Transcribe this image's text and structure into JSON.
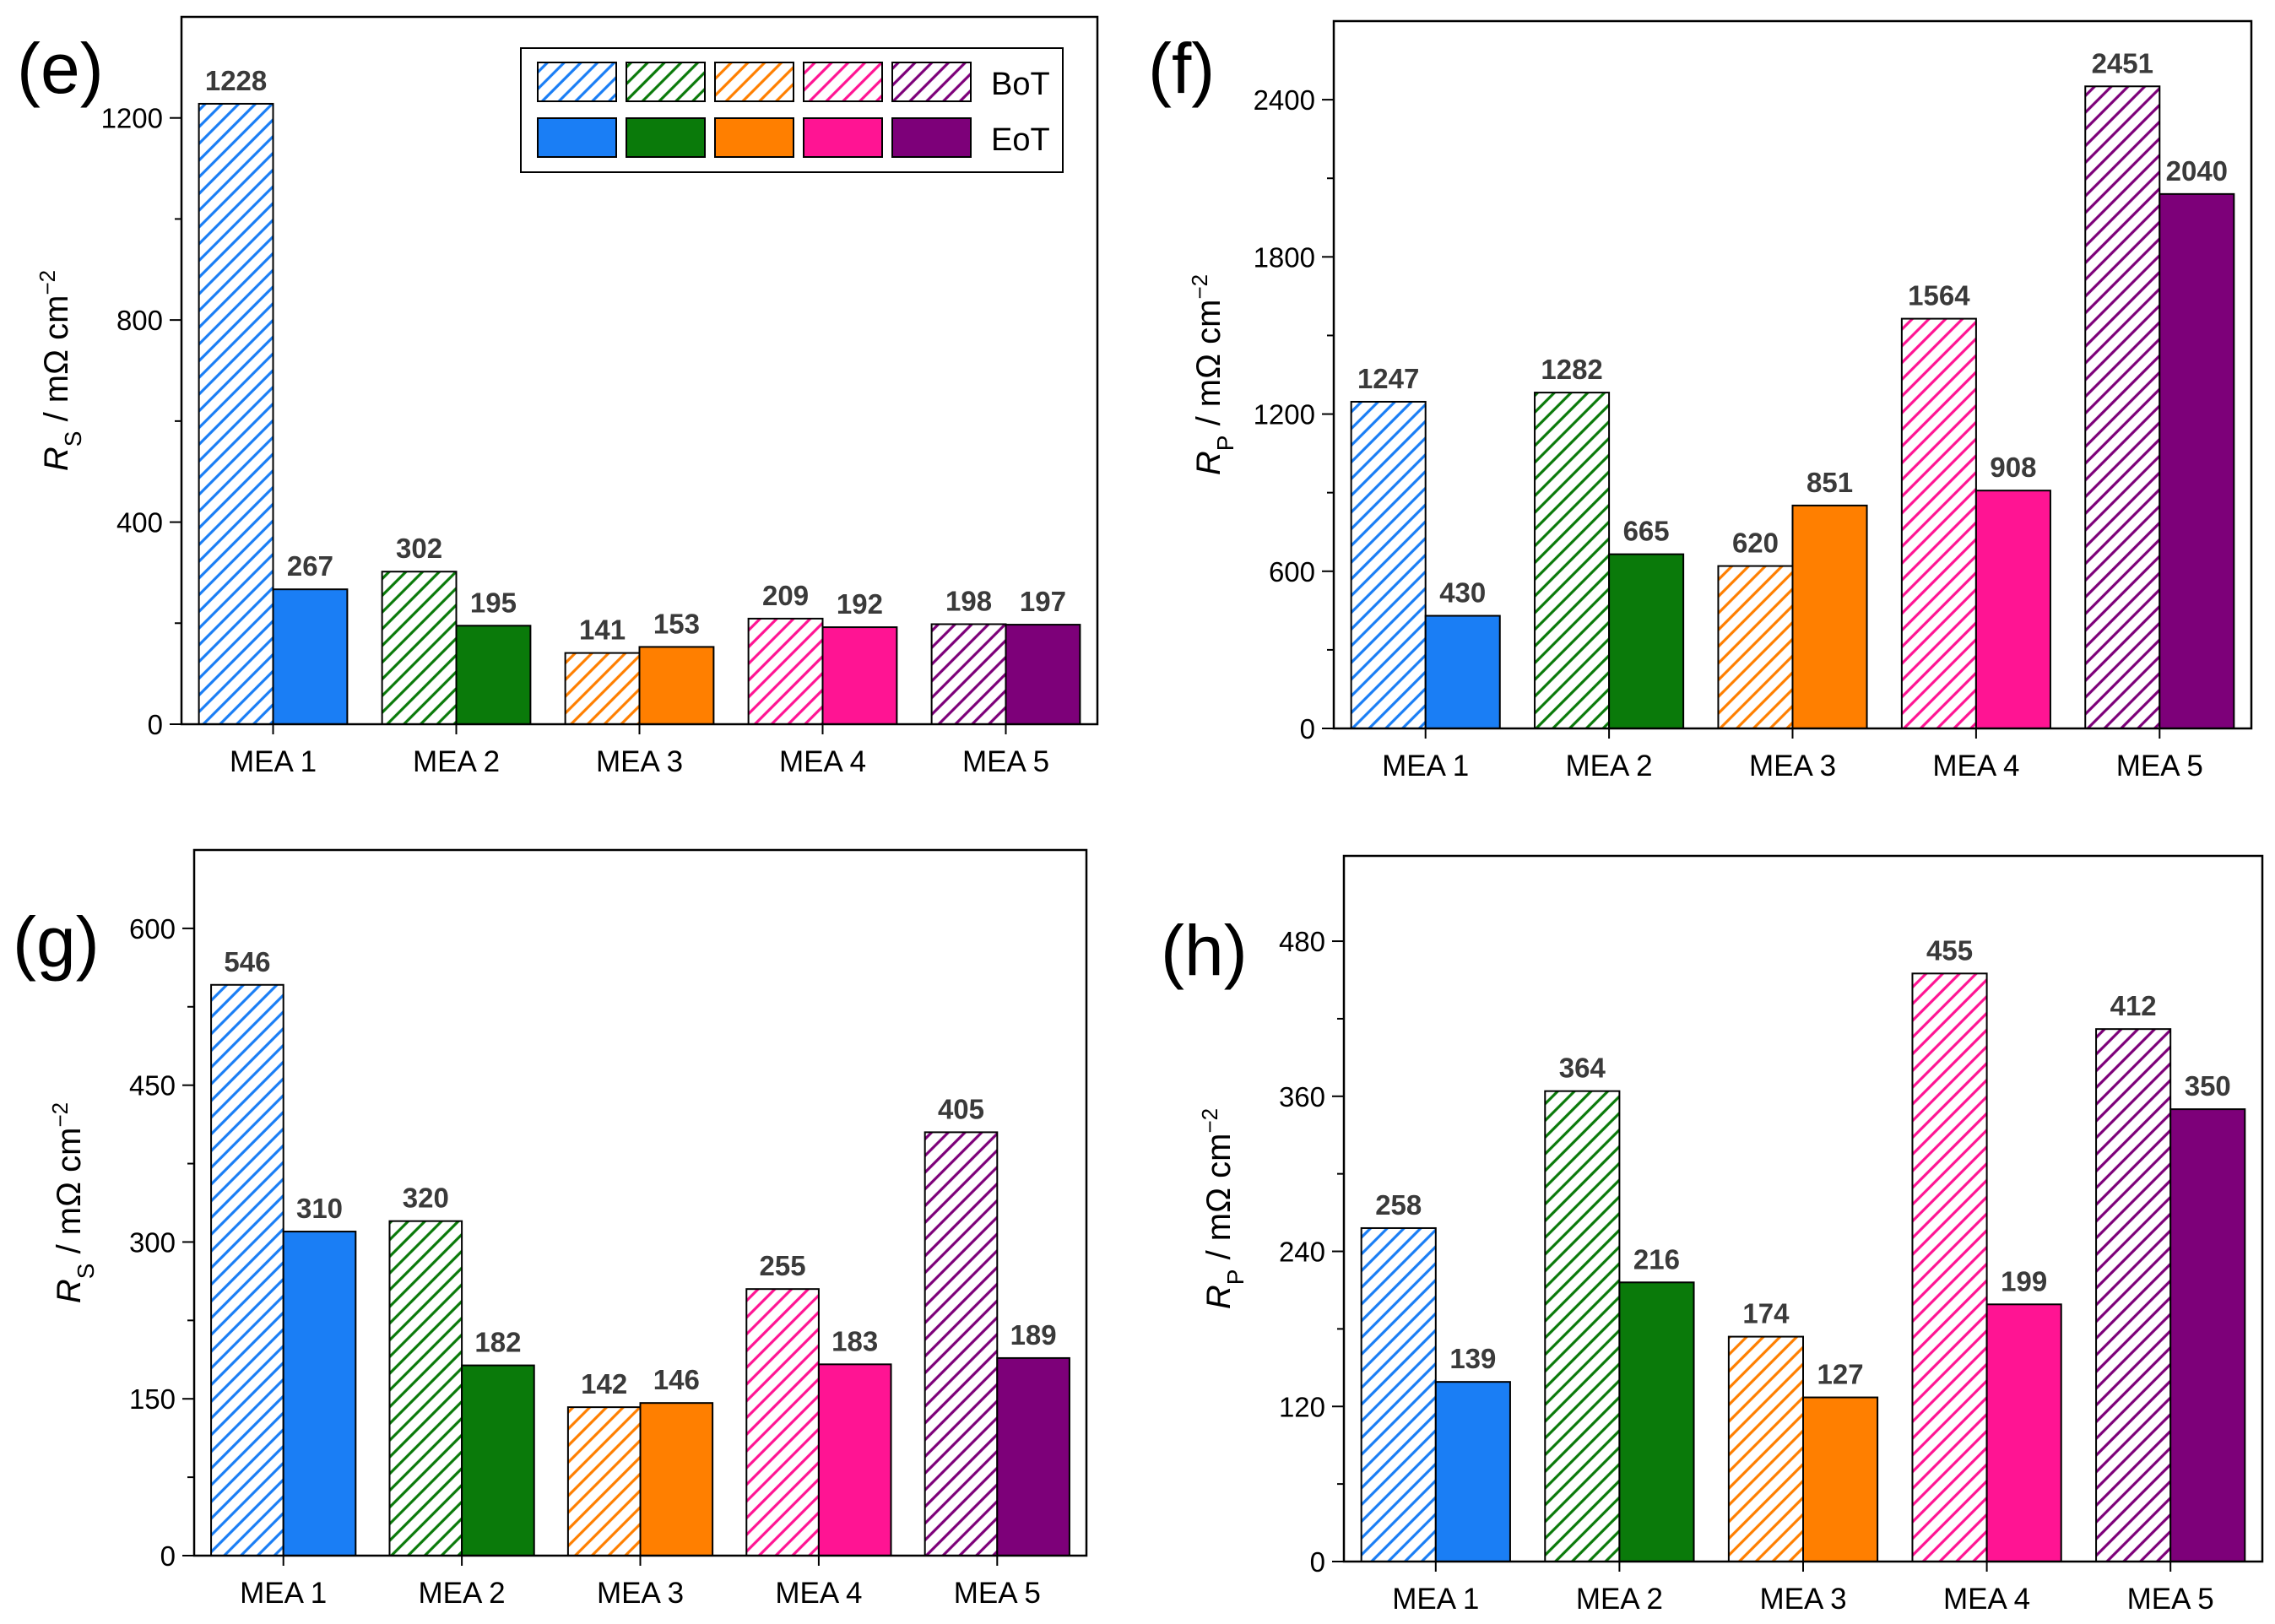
{
  "colors": {
    "MEA 1": "#1a7ef5",
    "MEA 2": "#0a7a0a",
    "MEA 3": "#ff7f00",
    "MEA 4": "#ff1493",
    "MEA 5": "#7d0079"
  },
  "legend": {
    "bot_label": "BoT",
    "eot_label": "EoT"
  },
  "chart_data": [
    {
      "panel": "(e)",
      "type": "bar",
      "ylabel": {
        "symbol": "R",
        "sub": "S",
        "unit": " / mΩ cm",
        "sup": "−2"
      },
      "ylim": [
        0,
        1400
      ],
      "yticks": [
        0,
        400,
        800,
        1200
      ],
      "categories": [
        "MEA 1",
        "MEA 2",
        "MEA 3",
        "MEA 4",
        "MEA 5"
      ],
      "series": [
        {
          "name": "BoT",
          "style": "hatched",
          "values": [
            1228,
            302,
            141,
            209,
            198
          ]
        },
        {
          "name": "EoT",
          "style": "solid",
          "values": [
            267,
            195,
            153,
            192,
            197
          ]
        }
      ],
      "legend_position": "top-right"
    },
    {
      "panel": "(f)",
      "type": "bar",
      "ylabel": {
        "symbol": "R",
        "sub": "P",
        "unit": " / mΩ cm",
        "sup": "−2"
      },
      "ylim": [
        0,
        2700
      ],
      "yticks": [
        0,
        600,
        1200,
        1800,
        2400
      ],
      "categories": [
        "MEA 1",
        "MEA 2",
        "MEA 3",
        "MEA 4",
        "MEA 5"
      ],
      "series": [
        {
          "name": "BoT",
          "style": "hatched",
          "values": [
            1247,
            1282,
            620,
            1564,
            2451
          ]
        },
        {
          "name": "EoT",
          "style": "solid",
          "values": [
            430,
            665,
            851,
            908,
            2040
          ]
        }
      ]
    },
    {
      "panel": "(g)",
      "type": "bar",
      "ylabel": {
        "symbol": "R",
        "sub": "S",
        "unit": " / mΩ cm",
        "sup": "−2"
      },
      "ylim": [
        0,
        675
      ],
      "yticks": [
        0,
        150,
        300,
        450,
        600
      ],
      "categories": [
        "MEA 1",
        "MEA 2",
        "MEA 3",
        "MEA 4",
        "MEA 5"
      ],
      "series": [
        {
          "name": "BoT",
          "style": "hatched",
          "values": [
            546,
            320,
            142,
            255,
            405
          ]
        },
        {
          "name": "EoT",
          "style": "solid",
          "values": [
            310,
            182,
            146,
            183,
            189
          ]
        }
      ]
    },
    {
      "panel": "(h)",
      "type": "bar",
      "ylabel": {
        "symbol": "R",
        "sub": "P",
        "unit": " / mΩ cm",
        "sup": "−2"
      },
      "ylim": [
        0,
        546
      ],
      "yticks": [
        0,
        120,
        240,
        360,
        480
      ],
      "categories": [
        "MEA 1",
        "MEA 2",
        "MEA 3",
        "MEA 4",
        "MEA 5"
      ],
      "series": [
        {
          "name": "BoT",
          "style": "hatched",
          "values": [
            258,
            364,
            174,
            455,
            412
          ]
        },
        {
          "name": "EoT",
          "style": "solid",
          "values": [
            139,
            216,
            127,
            199,
            350
          ]
        }
      ]
    }
  ]
}
